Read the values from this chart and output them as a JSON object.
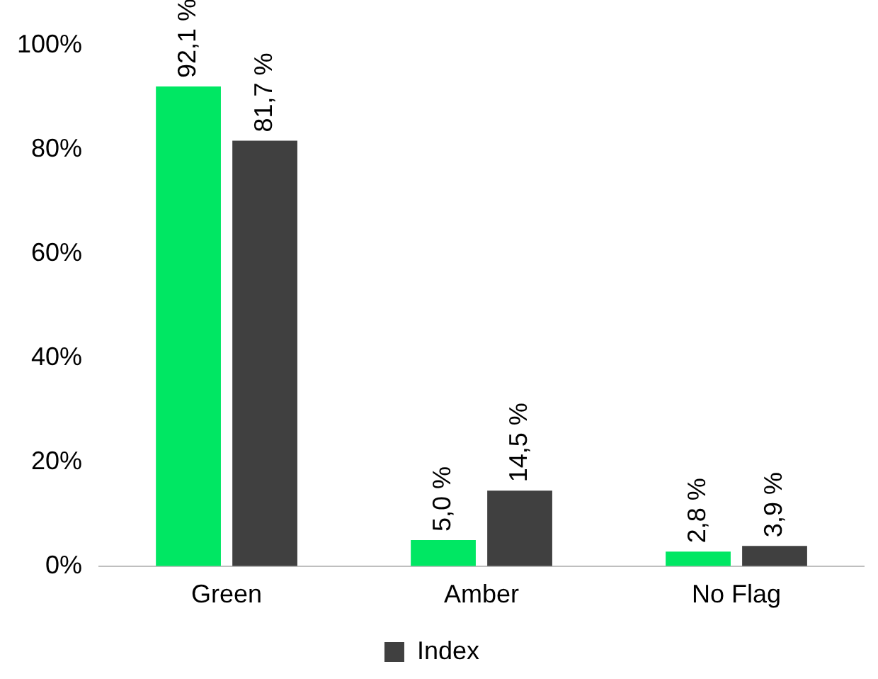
{
  "chart_data": {
    "type": "bar",
    "categories": [
      "Green",
      "Amber",
      "No Flag"
    ],
    "series": [
      {
        "color": "#00e763",
        "values": [
          92.1,
          5.0,
          2.8
        ],
        "value_labels": [
          "92,1 %",
          "5,0 %",
          "2,8 %"
        ]
      },
      {
        "name": "Index",
        "color": "#404040",
        "values": [
          81.7,
          14.5,
          3.9
        ],
        "value_labels": [
          "81,7 %",
          "14,5 %",
          "3,9 %"
        ]
      }
    ],
    "ylim": [
      0,
      100
    ],
    "yticks": [
      {
        "value": 0,
        "label": "0%"
      },
      {
        "value": 20,
        "label": "20%"
      },
      {
        "value": 40,
        "label": "40%"
      },
      {
        "value": 60,
        "label": "60%"
      },
      {
        "value": 80,
        "label": "80%"
      },
      {
        "value": 100,
        "label": "100%"
      }
    ],
    "grid": false,
    "legend": "bottom"
  }
}
